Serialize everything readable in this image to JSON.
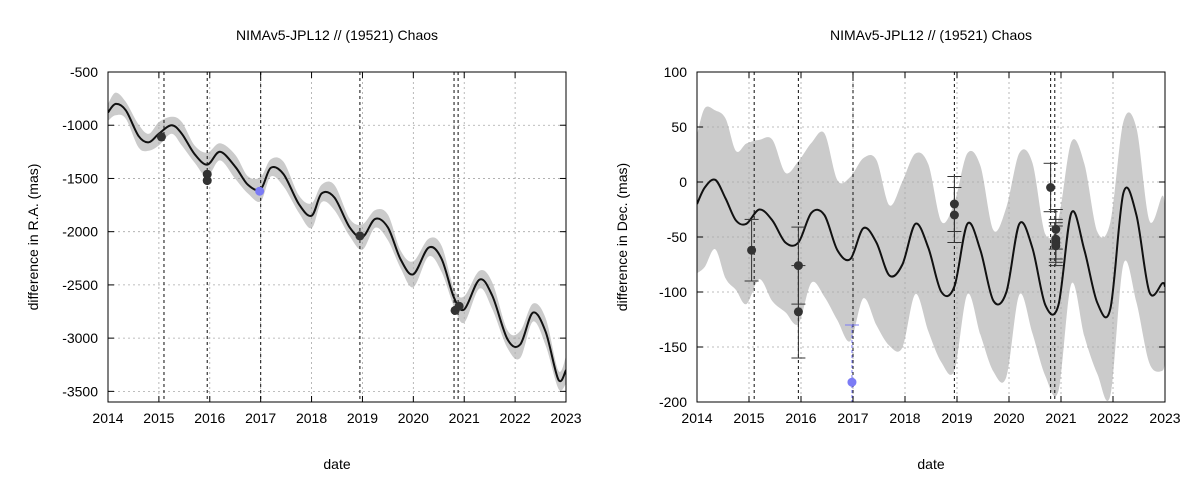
{
  "chart_data": [
    {
      "type": "line",
      "title": "NIMAv5-JPL12 // (19521) Chaos",
      "xlabel": "date",
      "ylabel": "difference in R.A. (mas)",
      "xlim": [
        2014,
        2023
      ],
      "ylim": [
        -3600,
        -500
      ],
      "x_ticks": [
        2014,
        2015,
        2016,
        2017,
        2018,
        2019,
        2020,
        2021,
        2022,
        2023
      ],
      "y_ticks": [
        -3500,
        -3000,
        -2500,
        -2000,
        -1500,
        -1000,
        -500
      ],
      "grid": true,
      "observation_dates": [
        2015.1,
        2015.95,
        2017.0,
        2018.95,
        2020.8,
        2020.88
      ],
      "series": [
        {
          "x": [
            2014.0,
            2014.15,
            2014.35,
            2014.6,
            2014.8,
            2015.0,
            2015.25,
            2015.45,
            2015.7,
            2015.95,
            2016.2,
            2016.5,
            2016.75,
            2017.0,
            2017.2,
            2017.45,
            2017.75,
            2018.0,
            2018.2,
            2018.45,
            2018.75,
            2019.0,
            2019.25,
            2019.5,
            2019.75,
            2020.0,
            2020.3,
            2020.55,
            2020.8,
            2021.0,
            2021.3,
            2021.55,
            2021.85,
            2022.1,
            2022.35,
            2022.6,
            2022.85,
            2023.0
          ],
          "values": [
            -880,
            -800,
            -860,
            -1100,
            -1160,
            -1080,
            -1000,
            -1080,
            -1270,
            -1370,
            -1250,
            -1390,
            -1560,
            -1600,
            -1400,
            -1460,
            -1740,
            -1850,
            -1640,
            -1680,
            -1960,
            -2050,
            -1880,
            -1960,
            -2260,
            -2400,
            -2150,
            -2250,
            -2620,
            -2730,
            -2450,
            -2600,
            -3010,
            -3060,
            -2760,
            -2940,
            -3390,
            -3300
          ]
        },
        {
          "x": [
            2015.05,
            2015.95,
            2015.95,
            2018.95,
            2020.82,
            2020.9
          ],
          "values": [
            -1110,
            -1460,
            -1520,
            -2040,
            -2740,
            -2700
          ]
        },
        {
          "x": [
            2016.98
          ],
          "values": [
            -1620
          ],
          "color": "#7b7bf5"
        }
      ]
    },
    {
      "type": "line",
      "title": "NIMAv5-JPL12 // (19521) Chaos",
      "xlabel": "date",
      "ylabel": "difference in Dec. (mas)",
      "xlim": [
        2014,
        2023
      ],
      "ylim": [
        -200,
        100
      ],
      "x_ticks": [
        2014,
        2015,
        2016,
        2017,
        2018,
        2019,
        2020,
        2021,
        2022,
        2023
      ],
      "y_ticks": [
        -200,
        -150,
        -100,
        -50,
        0,
        50,
        100
      ],
      "grid": true,
      "observation_dates": [
        2015.1,
        2015.95,
        2017.0,
        2018.95,
        2020.8,
        2020.88
      ],
      "series": [
        {
          "x": [
            2014.0,
            2014.15,
            2014.35,
            2014.55,
            2014.75,
            2014.95,
            2015.2,
            2015.45,
            2015.7,
            2015.95,
            2016.2,
            2016.45,
            2016.7,
            2016.95,
            2017.2,
            2017.45,
            2017.7,
            2017.95,
            2018.2,
            2018.45,
            2018.7,
            2018.95,
            2019.2,
            2019.45,
            2019.7,
            2019.95,
            2020.2,
            2020.45,
            2020.7,
            2020.95,
            2021.2,
            2021.45,
            2021.7,
            2021.95,
            2022.2,
            2022.45,
            2022.7,
            2022.95,
            2023.0
          ],
          "values": [
            -20,
            -5,
            2,
            -15,
            -35,
            -38,
            -25,
            -35,
            -55,
            -55,
            -28,
            -30,
            -62,
            -70,
            -42,
            -55,
            -85,
            -75,
            -38,
            -60,
            -100,
            -95,
            -38,
            -62,
            -108,
            -100,
            -38,
            -60,
            -112,
            -112,
            -28,
            -62,
            -110,
            -115,
            -10,
            -30,
            -100,
            -92,
            -95
          ]
        },
        {
          "x": [
            2015.05,
            2015.95,
            2015.95,
            2018.95,
            2018.95,
            2020.8,
            2020.9,
            2020.9,
            2020.9,
            2020.9
          ],
          "values": [
            -62,
            -76,
            -118,
            -20,
            -30,
            -5,
            -43,
            -52,
            -55,
            -58
          ],
          "errors": [
            28,
            35,
            42,
            25,
            25,
            22,
            18,
            18,
            18,
            18
          ]
        },
        {
          "x": [
            2016.98
          ],
          "values": [
            -182
          ],
          "errors": [
            52
          ],
          "color": "#7b7bf5"
        }
      ]
    }
  ]
}
